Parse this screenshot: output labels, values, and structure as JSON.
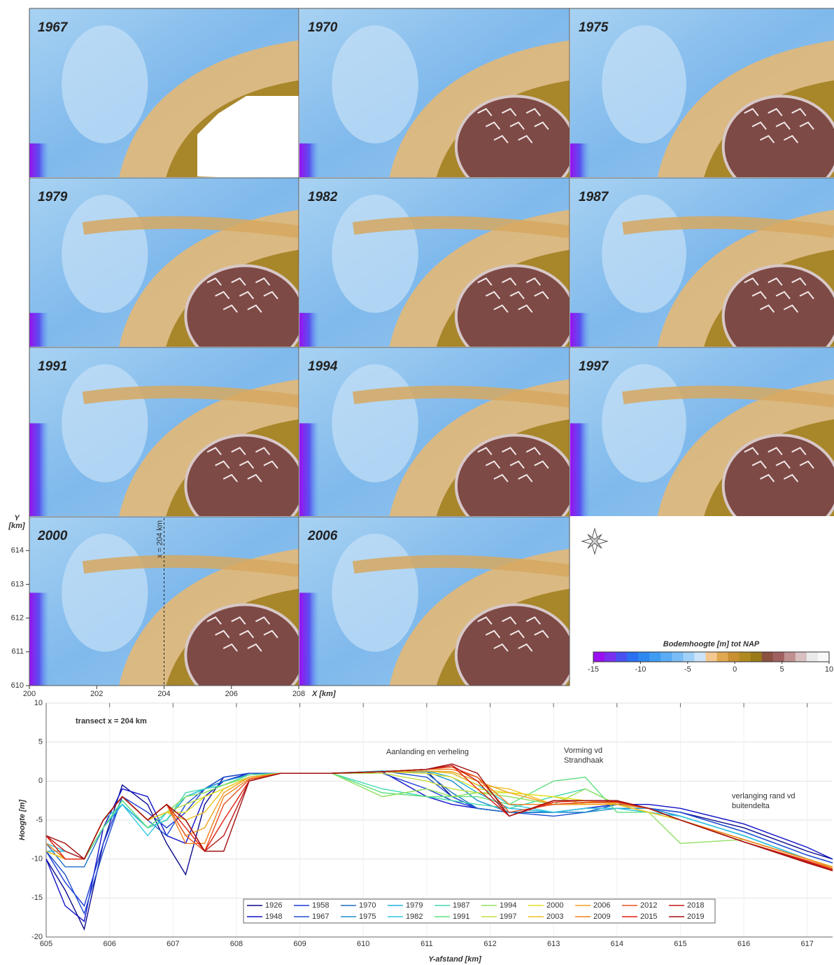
{
  "maps": {
    "panels": [
      "1967",
      "1970",
      "1975",
      "1979",
      "1982",
      "1987",
      "1991",
      "1994",
      "1997",
      "2000",
      "2006"
    ],
    "y_label": [
      "Y",
      "[km]"
    ],
    "x_label": "X [km]",
    "xlim": [
      200,
      208
    ],
    "xticks": [
      200,
      202,
      204,
      206,
      208
    ],
    "ylim": [
      610,
      615
    ],
    "yticks": [
      610,
      611,
      612,
      613,
      614
    ],
    "transect_x": 204,
    "transect_label": "x = 204 km",
    "colorbar": {
      "title": "Bodemhoogte  [m] tot NAP",
      "lim": [
        -15,
        10
      ],
      "ticks": [
        -15,
        -10,
        -5,
        0,
        5,
        10
      ],
      "colors": [
        "#9a10f0",
        "#7a30f0",
        "#4a50f0",
        "#2a70f0",
        "#2f88f0",
        "#3f9cf2",
        "#5aacf4",
        "#7abcf6",
        "#a0d0f8",
        "#cce4fa",
        "#f4c890",
        "#e0a850",
        "#c89030",
        "#b08a20",
        "#9a7a18",
        "#8a5040",
        "#a06060",
        "#c09090",
        "#d8c0c0",
        "#eaeaea",
        "#f8f8f8"
      ]
    }
  },
  "chart_data": {
    "type": "line",
    "annotations": [
      "transect x = 204 km",
      "Aanlanding en verheling",
      [
        "Vorming vd",
        "Strandhaak"
      ],
      [
        "verlanging rand vd",
        "buitendelta"
      ]
    ],
    "xlabel": "Y-afstand  [km]",
    "ylabel": "Hoogte [m]",
    "xlim": [
      605,
      617.4
    ],
    "xticks": [
      605,
      606,
      607,
      608,
      609,
      610,
      611,
      612,
      613,
      614,
      615,
      616,
      617
    ],
    "ylim": [
      -20,
      10
    ],
    "yticks": [
      -20,
      -15,
      -10,
      -5,
      0,
      5,
      10
    ],
    "grid": true,
    "x": [
      605,
      605.3,
      605.6,
      605.9,
      606.2,
      606.6,
      606.9,
      607.2,
      607.5,
      607.8,
      608.2,
      608.7,
      609.5,
      610.3,
      611,
      611.4,
      611.8,
      612.3,
      613,
      613.5,
      614,
      614.5,
      615,
      616,
      617,
      617.4
    ],
    "series": [
      {
        "name": "1926",
        "color": "#0a0a8c",
        "values": [
          -10,
          -14,
          -19,
          -8,
          -0.5,
          -3,
          -8,
          -12,
          -3,
          0.5,
          1,
          1,
          1,
          1.2,
          1.3,
          -2,
          -3.5,
          -4,
          -4,
          -3.5,
          -3,
          -3.5,
          -4,
          -6,
          -9,
          -10
        ]
      },
      {
        "name": "1948",
        "color": "#1010c8",
        "values": [
          -10,
          -16,
          -18,
          -6,
          -1,
          -2,
          -7,
          -8,
          -2,
          0,
          1,
          1,
          1,
          1.2,
          -2,
          -3,
          -3.5,
          -4,
          -4,
          -3.5,
          -3,
          -3,
          -3.5,
          -5.5,
          -8.5,
          -10
        ]
      },
      {
        "name": "1958",
        "color": "#1a3bd6",
        "values": [
          -9,
          -13,
          -16,
          -8,
          -2,
          -4,
          -6,
          -4,
          -1,
          0.5,
          1,
          1,
          1,
          1,
          -1,
          -2.5,
          -3.5,
          -4,
          -4,
          -3.5,
          -3,
          -3.5,
          -4,
          -6.5,
          -9.5,
          -10.5
        ]
      },
      {
        "name": "1967",
        "color": "#2050d0",
        "values": [
          -9,
          -12,
          -17,
          -9,
          -2,
          -5,
          -7,
          -3,
          -1,
          0.5,
          1,
          1,
          1,
          1.3,
          0.5,
          -2,
          -3.5,
          -4,
          -4.5,
          -4,
          -3,
          -3.5,
          -4,
          -6.5,
          -9.5,
          -10.5
        ]
      },
      {
        "name": "1970",
        "color": "#1f6fc8",
        "values": [
          -8,
          -11,
          -11,
          -6,
          -3,
          -6,
          -5,
          -2,
          -1,
          0,
          0.8,
          1,
          1,
          1.2,
          1,
          -1.5,
          -3.5,
          -4,
          -4,
          -4,
          -3,
          -3.5,
          -4.5,
          -7,
          -10,
          -11
        ]
      },
      {
        "name": "1975",
        "color": "#1a8fd0",
        "values": [
          -9,
          -10,
          -10,
          -6,
          -3,
          -6,
          -5,
          -2,
          -1,
          0,
          0.8,
          1,
          1,
          1.2,
          1.2,
          0,
          -2.5,
          -4,
          -4,
          -4,
          -3.5,
          -3.5,
          -4.5,
          -7,
          -10,
          -11
        ]
      },
      {
        "name": "1979",
        "color": "#20b0e0",
        "values": [
          -9,
          -9,
          -10,
          -6,
          -3,
          -6,
          -5,
          -2,
          -1,
          -0.5,
          0.8,
          1,
          1,
          1.2,
          1.3,
          0.5,
          -1.5,
          -3.5,
          -4,
          -3.5,
          -3.5,
          -4,
          -4.5,
          -7,
          -10,
          -11
        ]
      },
      {
        "name": "1982",
        "color": "#30c8e0",
        "values": [
          -8,
          -9,
          -10,
          -5,
          -3,
          -7,
          -4,
          -2,
          -1,
          -0.5,
          0.8,
          1,
          1,
          1.3,
          1.3,
          1,
          -0.5,
          -3,
          -4,
          -3.5,
          -3.5,
          -4,
          -4.5,
          -7,
          -10,
          -11
        ]
      },
      {
        "name": "1987",
        "color": "#40d8b0",
        "values": [
          -9,
          -10,
          -10,
          -6,
          -2.5,
          -6,
          -5,
          -1.5,
          -1,
          -0.5,
          0.8,
          1,
          1,
          -1,
          -2,
          -2.5,
          -3,
          -3.5,
          -2,
          -1,
          -3,
          -4,
          -5,
          -7.5,
          -10,
          -11
        ]
      },
      {
        "name": "1991",
        "color": "#60e080",
        "values": [
          -9,
          -10,
          -10,
          -6,
          -2.5,
          -6,
          -4,
          -2,
          -1.5,
          -0.5,
          0.8,
          1,
          1,
          -1.5,
          -2,
          -2,
          -2,
          -3,
          0,
          0.5,
          -4,
          -4,
          -5,
          -7.5,
          -10,
          -11
        ]
      },
      {
        "name": "1994",
        "color": "#90e060",
        "values": [
          -9,
          -10,
          -10,
          -5,
          -2,
          -5,
          -4,
          -2,
          -1.5,
          -0.5,
          0.5,
          1,
          1,
          -2,
          -1,
          -2,
          -1.5,
          -2,
          -3,
          -1,
          -3,
          -4,
          -8,
          -7.5,
          -10,
          -11
        ]
      },
      {
        "name": "1997",
        "color": "#c0e040",
        "values": [
          -9,
          -10,
          -10,
          -5,
          -2,
          -5,
          -4,
          -3,
          -2,
          -1,
          0.5,
          1,
          1,
          1,
          0,
          -1,
          -1.5,
          -1.5,
          -2,
          -3,
          -3,
          -4,
          -5,
          -7.5,
          -10,
          -11
        ]
      },
      {
        "name": "2000",
        "color": "#e8e020",
        "values": [
          -9,
          -10,
          -10,
          -5,
          -2,
          -5,
          -4,
          -4,
          -2,
          -1,
          0.5,
          1,
          1,
          1.2,
          1,
          0.5,
          -1,
          -1.5,
          -2,
          -2.5,
          -3,
          -4,
          -5,
          -7.5,
          -10,
          -11
        ]
      },
      {
        "name": "2003",
        "color": "#f0c020",
        "values": [
          -9,
          -10,
          -10,
          -5,
          -2,
          -5,
          -4,
          -5,
          -4,
          -1,
          0.5,
          1,
          1,
          1.2,
          1.3,
          1,
          -0.5,
          -1,
          -3,
          -3,
          -3,
          -4,
          -5,
          -7.5,
          -10,
          -11
        ]
      },
      {
        "name": "2006",
        "color": "#f0a020",
        "values": [
          -8,
          -10,
          -10,
          -5,
          -2,
          -5,
          -3,
          -7,
          -6,
          -1.5,
          0.5,
          1,
          1,
          1.2,
          1.3,
          1.2,
          0,
          -1.5,
          -3,
          -3,
          -3,
          -3.5,
          -5,
          -7.5,
          -10,
          -11
        ]
      },
      {
        "name": "2009",
        "color": "#f08020",
        "values": [
          -8,
          -10,
          -10,
          -5,
          -2,
          -5,
          -3,
          -8,
          -8,
          -2,
          0.3,
          1,
          1,
          1.2,
          1.5,
          1.5,
          0.5,
          -3,
          -3,
          -2.8,
          -2.8,
          -3.5,
          -5,
          -7.5,
          -10,
          -11.2
        ]
      },
      {
        "name": "2012",
        "color": "#e85020",
        "values": [
          -7,
          -10,
          -10,
          -5,
          -2,
          -5,
          -3,
          -7,
          -9,
          -3,
          0.2,
          1,
          1,
          1.2,
          1.5,
          1.8,
          0.5,
          -4,
          -3,
          -2.7,
          -2.7,
          -3.5,
          -5,
          -7.8,
          -10.2,
          -11.3
        ]
      },
      {
        "name": "2015",
        "color": "#e02010",
        "values": [
          -7,
          -10,
          -10,
          -5,
          -2,
          -5,
          -3,
          -6,
          -9,
          -5,
          0,
          1,
          1,
          1.2,
          1.5,
          2,
          -1,
          -4.5,
          -2.7,
          -2.5,
          -2.6,
          -3.5,
          -5,
          -7.8,
          -10.3,
          -11.4
        ]
      },
      {
        "name": "2018",
        "color": "#c01818",
        "values": [
          -7,
          -9,
          -10,
          -5,
          -2,
          -5,
          -3,
          -5,
          -9,
          -7,
          0,
          1,
          1,
          1.2,
          1.5,
          2,
          0,
          -4.5,
          -2.5,
          -2.5,
          -2.6,
          -3.5,
          -5,
          -7.8,
          -10.4,
          -11.5
        ]
      },
      {
        "name": "2019",
        "color": "#a01010",
        "values": [
          -7,
          -8,
          -10,
          -5,
          -2,
          -5,
          -3,
          -5,
          -9,
          -9,
          0,
          1,
          1,
          1.2,
          1.5,
          2.2,
          1,
          -4.5,
          -2.5,
          -2.5,
          -2.5,
          -3.5,
          -5,
          -7.8,
          -10.5,
          -11.5
        ]
      }
    ]
  }
}
